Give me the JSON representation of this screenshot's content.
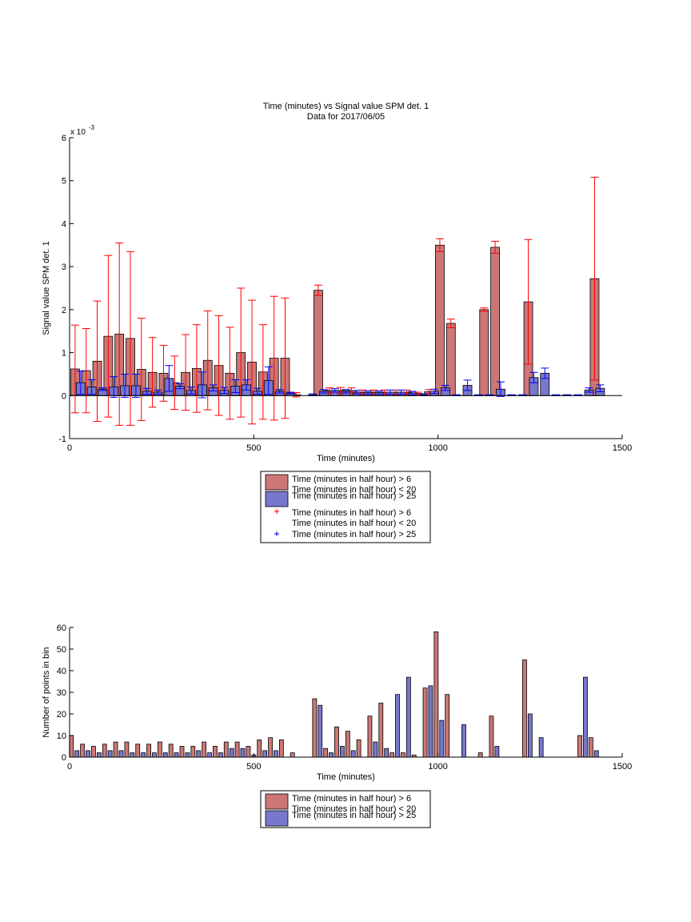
{
  "chart_data": [
    {
      "type": "bar",
      "title": "Time (minutes) vs Signal value SPM det. 1",
      "subtitle": "Data for 2017/06/05",
      "xlabel": "Time (minutes)",
      "ylabel": "Signal value SPM det. 1",
      "y_exponent_label": "x 10",
      "y_exponent_power": "-3",
      "xlim": [
        0,
        1500
      ],
      "ylim": [
        -1,
        6
      ],
      "xticks": [
        0,
        500,
        1000,
        1500
      ],
      "yticks": [
        -1,
        0,
        1,
        2,
        3,
        4,
        5,
        6
      ],
      "grid": false,
      "legend_position": "below",
      "legend": [
        {
          "kind": "patch",
          "color": "#cc7777",
          "line1": "Time (minutes in half hour) > 6",
          "line2": "Time (minutes in half hour) < 20"
        },
        {
          "kind": "patch",
          "color": "#7777cc",
          "line1": "Time (minutes in half hour) > 25",
          "line2": ""
        },
        {
          "kind": "marker",
          "color": "#ff0000",
          "line1": "Time (minutes in half hour) > 6",
          "line2": "Time (minutes in half hour) < 20"
        },
        {
          "kind": "marker",
          "color": "#0000ff",
          "line1": "Time (minutes in half hour) > 25",
          "line2": ""
        }
      ],
      "series": [
        {
          "color": "#cc7777",
          "error_color": "#ff0000",
          "x": [
            15,
            45,
            75,
            105,
            135,
            165,
            195,
            225,
            255,
            285,
            315,
            345,
            375,
            405,
            435,
            465,
            495,
            525,
            555,
            585,
            615,
            675,
            705,
            735,
            765,
            795,
            825,
            855,
            885,
            915,
            945,
            975,
            1005,
            1035,
            1125,
            1155,
            1245,
            1425
          ],
          "values": [
            0.62,
            0.58,
            0.8,
            1.38,
            1.43,
            1.33,
            0.61,
            0.54,
            0.52,
            0.3,
            0.54,
            0.63,
            0.82,
            0.7,
            0.52,
            1.0,
            0.78,
            0.55,
            0.87,
            0.87,
            0.02,
            2.45,
            0.12,
            0.12,
            0.12,
            0.08,
            0.08,
            0.08,
            0.08,
            0.08,
            0.05,
            0.09,
            3.5,
            1.68,
            2.0,
            3.45,
            2.18,
            2.72
          ],
          "errors": [
            1.02,
            0.98,
            1.4,
            1.88,
            2.12,
            2.02,
            1.19,
            0.81,
            0.65,
            0.62,
            0.88,
            1.02,
            1.15,
            1.16,
            1.07,
            1.5,
            1.44,
            1.1,
            1.44,
            1.4,
            0.05,
            0.12,
            0.06,
            0.07,
            0.06,
            0.05,
            0.05,
            0.05,
            0.05,
            0.05,
            0.03,
            0.05,
            0.15,
            0.1,
            0.04,
            0.14,
            1.45,
            2.36
          ]
        },
        {
          "color": "#7777cc",
          "error_color": "#0000ff",
          "x": [
            30,
            60,
            90,
            120,
            150,
            180,
            210,
            240,
            270,
            300,
            330,
            360,
            390,
            420,
            450,
            480,
            510,
            540,
            570,
            600,
            660,
            690,
            720,
            750,
            780,
            810,
            840,
            870,
            900,
            930,
            960,
            990,
            1020,
            1050,
            1080,
            1110,
            1140,
            1170,
            1200,
            1230,
            1260,
            1290,
            1320,
            1350,
            1380,
            1410,
            1440
          ],
          "values": [
            0.3,
            0.2,
            0.15,
            0.2,
            0.23,
            0.23,
            0.1,
            0.08,
            0.4,
            0.22,
            0.12,
            0.25,
            0.18,
            0.12,
            0.22,
            0.25,
            0.1,
            0.35,
            0.1,
            0.06,
            0.02,
            0.1,
            0.12,
            0.1,
            0.08,
            0.07,
            0.07,
            0.08,
            0.08,
            0.06,
            0.02,
            0.1,
            0.18,
            0.01,
            0.24,
            0.01,
            0.01,
            0.15,
            0.01,
            0.01,
            0.42,
            0.52,
            0.01,
            0.01,
            0.01,
            0.13,
            0.17
          ],
          "errors": [
            0.27,
            0.17,
            0.03,
            0.24,
            0.27,
            0.27,
            0.07,
            0.05,
            0.3,
            0.06,
            0.08,
            0.3,
            0.07,
            0.07,
            0.15,
            0.12,
            0.07,
            0.32,
            0.04,
            0.02,
            0.02,
            0.04,
            0.04,
            0.04,
            0.04,
            0.04,
            0.04,
            0.05,
            0.05,
            0.04,
            0.02,
            0.05,
            0.06,
            0.01,
            0.12,
            0.01,
            0.01,
            0.17,
            0.01,
            0.01,
            0.12,
            0.12,
            0.01,
            0.01,
            0.01,
            0.05,
            0.08
          ]
        }
      ]
    },
    {
      "type": "bar",
      "xlabel": "Time (minutes)",
      "ylabel": "Number of points in bin",
      "xlim": [
        0,
        1500
      ],
      "ylim": [
        0,
        60
      ],
      "xticks": [
        0,
        500,
        1000,
        1500
      ],
      "yticks": [
        0,
        10,
        20,
        30,
        40,
        50,
        60
      ],
      "grid": false,
      "legend_position": "below",
      "legend": [
        {
          "kind": "patch",
          "color": "#cc7777",
          "line1": "Time (minutes in half hour) > 6",
          "line2": "Time (minutes in half hour) < 20"
        },
        {
          "kind": "patch",
          "color": "#7777cc",
          "line1": "Time (minutes in half hour) > 25",
          "line2": ""
        }
      ],
      "series": [
        {
          "color": "#cc7777",
          "x": [
            5,
            35,
            65,
            95,
            125,
            155,
            185,
            215,
            245,
            275,
            305,
            335,
            365,
            395,
            425,
            455,
            485,
            515,
            545,
            575,
            605,
            665,
            695,
            725,
            755,
            785,
            815,
            845,
            875,
            905,
            935,
            965,
            995,
            1025,
            1115,
            1145,
            1235,
            1385,
            1415
          ],
          "values": [
            10,
            6,
            5,
            6,
            7,
            7,
            6,
            6,
            7,
            6,
            5,
            5,
            7,
            5,
            7,
            7,
            5,
            8,
            9,
            8,
            2,
            27,
            4,
            14,
            12,
            8,
            19,
            25,
            2,
            2,
            1,
            32,
            58,
            29,
            2,
            19,
            45,
            10,
            9
          ]
        },
        {
          "color": "#7777cc",
          "x": [
            20,
            50,
            80,
            110,
            140,
            170,
            200,
            230,
            260,
            290,
            320,
            350,
            380,
            410,
            440,
            470,
            500,
            530,
            560,
            680,
            710,
            740,
            770,
            830,
            860,
            890,
            920,
            980,
            1010,
            1070,
            1160,
            1250,
            1280,
            1400,
            1430
          ],
          "values": [
            3,
            3,
            2,
            3,
            3,
            2,
            2,
            2,
            2,
            2,
            2,
            3,
            2,
            2,
            4,
            4,
            1,
            3,
            3,
            24,
            2,
            5,
            3,
            7,
            4,
            29,
            37,
            33,
            17,
            15,
            5,
            20,
            9,
            37,
            3
          ]
        }
      ]
    }
  ]
}
